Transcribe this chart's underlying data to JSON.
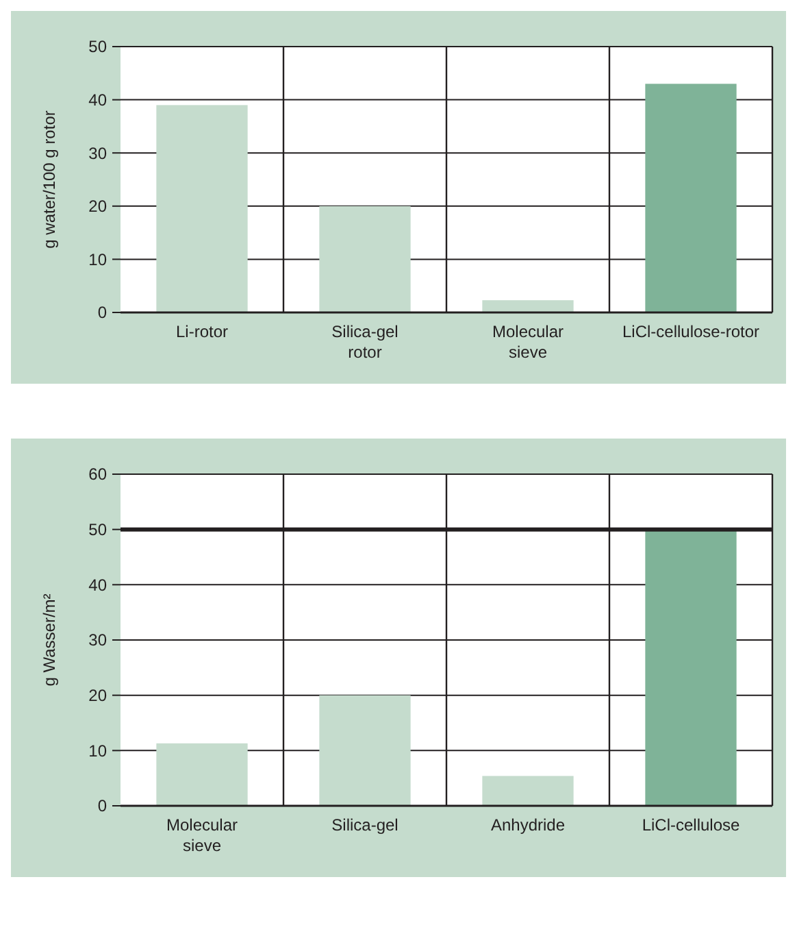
{
  "chart_data": [
    {
      "type": "bar",
      "ylabel": "g water/100 g rotor",
      "categories": [
        "Li-rotor",
        "Silica-gel rotor",
        "Molecular sieve",
        "LiCl-cellulose-rotor"
      ],
      "values": [
        39,
        20,
        2.3,
        43
      ],
      "colors": [
        "#c5dccd",
        "#c5dccd",
        "#c5dccd",
        "#7fb398"
      ],
      "ylim": [
        0,
        50
      ],
      "yticks": [
        0,
        10,
        20,
        30,
        40,
        50
      ],
      "grid": "y"
    },
    {
      "type": "bar",
      "ylabel": "g Wasser/m²",
      "categories": [
        "Molecular sieve",
        "Silica-gel",
        "Anhydride",
        "LiCl-cellulose"
      ],
      "values": [
        11.3,
        20,
        5.4,
        50
      ],
      "colors": [
        "#c5dccd",
        "#c5dccd",
        "#c5dccd",
        "#7fb398"
      ],
      "ylim": [
        0,
        60
      ],
      "yticks": [
        0,
        10,
        20,
        30,
        40,
        50,
        60
      ],
      "grid": "y",
      "ref_lines": [
        {
          "axis": "y",
          "value": 50,
          "label": null
        }
      ]
    }
  ]
}
